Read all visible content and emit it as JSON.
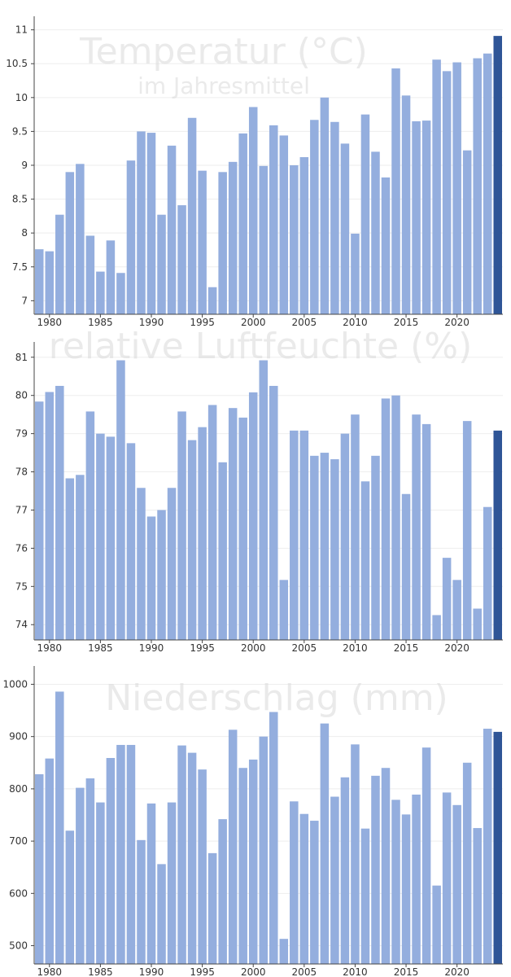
{
  "colors": {
    "bar": "#94aede",
    "highlight": "#2f5597",
    "axis": "#444444",
    "grid": "#eeeeee",
    "watermark": "#d9d9d9"
  },
  "chart_data": [
    {
      "type": "bar",
      "title": "Temperatur (°C)",
      "subtitle": "im Jahresmittel",
      "x": [
        1979,
        1980,
        1981,
        1982,
        1983,
        1984,
        1985,
        1986,
        1987,
        1988,
        1989,
        1990,
        1991,
        1992,
        1993,
        1994,
        1995,
        1996,
        1997,
        1998,
        1999,
        2000,
        2001,
        2002,
        2003,
        2004,
        2005,
        2006,
        2007,
        2008,
        2009,
        2010,
        2011,
        2012,
        2013,
        2014,
        2015,
        2016,
        2017,
        2018,
        2019,
        2020,
        2021,
        2022,
        2023,
        2024
      ],
      "values": [
        7.76,
        7.73,
        8.27,
        8.9,
        9.02,
        7.96,
        7.43,
        7.89,
        7.41,
        9.07,
        9.5,
        9.48,
        8.27,
        9.29,
        8.41,
        9.7,
        8.92,
        7.2,
        8.9,
        9.05,
        9.47,
        9.86,
        8.99,
        9.59,
        9.44,
        9.0,
        9.12,
        9.67,
        10.0,
        9.64,
        9.32,
        7.99,
        9.75,
        9.2,
        8.82,
        10.43,
        10.03,
        9.65,
        9.66,
        10.56,
        10.39,
        10.52,
        9.22,
        10.58,
        10.65,
        10.91
      ],
      "ylim": [
        6.8,
        11.2
      ],
      "yticks": [
        7,
        7.5,
        8,
        8.5,
        9,
        9.5,
        10,
        10.5,
        11
      ],
      "xticks": [
        1980,
        1985,
        1990,
        1995,
        2000,
        2005,
        2010,
        2015,
        2020
      ],
      "highlight": 2024
    },
    {
      "type": "bar",
      "title": "relative Luftfeuchte (%)",
      "x": [
        1979,
        1980,
        1981,
        1982,
        1983,
        1984,
        1985,
        1986,
        1987,
        1988,
        1989,
        1990,
        1991,
        1992,
        1993,
        1994,
        1995,
        1996,
        1997,
        1998,
        1999,
        2000,
        2001,
        2002,
        2003,
        2004,
        2005,
        2006,
        2007,
        2008,
        2009,
        2010,
        2011,
        2012,
        2013,
        2014,
        2015,
        2016,
        2017,
        2018,
        2019,
        2020,
        2021,
        2022,
        2023,
        2024
      ],
      "values": [
        79.84,
        80.09,
        80.25,
        77.83,
        77.92,
        79.58,
        79.0,
        78.92,
        80.92,
        78.75,
        77.58,
        76.83,
        77.0,
        77.58,
        79.58,
        78.83,
        79.17,
        79.75,
        78.25,
        79.67,
        79.42,
        80.08,
        80.92,
        80.25,
        75.17,
        79.08,
        79.08,
        78.42,
        78.5,
        78.33,
        79.0,
        79.5,
        77.75,
        78.42,
        79.92,
        80.0,
        77.42,
        79.5,
        79.25,
        74.25,
        75.75,
        75.17,
        79.33,
        74.42,
        77.08,
        79.08
      ],
      "ylim": [
        73.6,
        81.4
      ],
      "yticks": [
        74,
        75,
        76,
        77,
        78,
        79,
        80,
        81
      ],
      "xticks": [
        1980,
        1985,
        1990,
        1995,
        2000,
        2005,
        2010,
        2015,
        2020
      ],
      "highlight": 2024
    },
    {
      "type": "bar",
      "title": "Niederschlag (mm)",
      "x": [
        1979,
        1980,
        1981,
        1982,
        1983,
        1984,
        1985,
        1986,
        1987,
        1988,
        1989,
        1990,
        1991,
        1992,
        1993,
        1994,
        1995,
        1996,
        1997,
        1998,
        1999,
        2000,
        2001,
        2002,
        2003,
        2004,
        2005,
        2006,
        2007,
        2008,
        2009,
        2010,
        2011,
        2012,
        2013,
        2014,
        2015,
        2016,
        2017,
        2018,
        2019,
        2020,
        2021,
        2022,
        2023,
        2024
      ],
      "values": [
        828,
        858,
        986,
        720,
        802,
        820,
        774,
        859,
        884,
        884,
        702,
        772,
        656,
        774,
        883,
        869,
        837,
        677,
        742,
        913,
        840,
        856,
        900,
        947,
        513,
        776,
        752,
        739,
        925,
        785,
        822,
        885,
        724,
        825,
        840,
        779,
        751,
        789,
        879,
        615,
        793,
        769,
        850,
        725,
        915,
        909
      ],
      "ylim": [
        465,
        1035
      ],
      "yticks": [
        500,
        600,
        700,
        800,
        900,
        1000
      ],
      "xticks": [
        1980,
        1985,
        1990,
        1995,
        2000,
        2005,
        2010,
        2015,
        2020
      ],
      "highlight": 2024
    }
  ]
}
